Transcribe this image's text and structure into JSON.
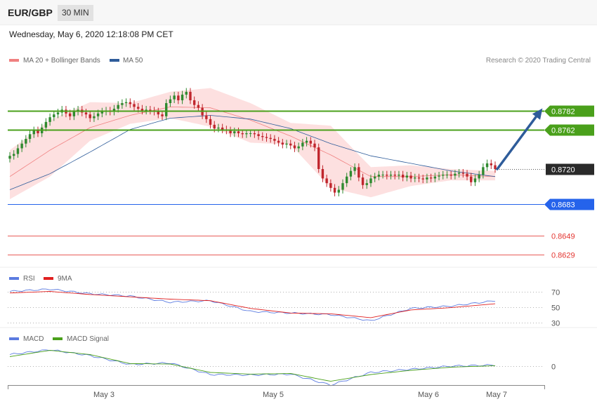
{
  "header": {
    "pair": "EUR/GBP",
    "timeframe": "30 MIN",
    "datetime": "Wednesday, May 6, 2020 12:18:08 PM CET",
    "copyright": "Research © 2020 Trading Central"
  },
  "colors": {
    "ma20": "#f08080",
    "ma50": "#2e5c9a",
    "bands_fill": "#fde0e0",
    "candle_up": "#2f8a2f",
    "candle_down": "#c0262d",
    "resistance": "#4aa01b",
    "current": "#2a2a2a",
    "pivot": "#2563eb",
    "support": "#e3342f",
    "arrow": "#2e5c9a",
    "rsi": "#5b7be0",
    "rsi_ma": "#e02020",
    "macd": "#5b7be0",
    "macd_signal": "#4aa01b"
  },
  "chart_data": [
    {
      "type": "candlestick",
      "legend": [
        {
          "label": "MA 20 + Bollinger Bands",
          "color": "#f08080"
        },
        {
          "label": "MA 50",
          "color": "#2e5c9a"
        }
      ],
      "y_range": [
        0.8615,
        0.8825
      ],
      "x_labels": [
        "May 3",
        "May 5",
        "May 6",
        "May 7"
      ],
      "levels": [
        {
          "value": 0.8782,
          "label": "0.8782",
          "kind": "resistance"
        },
        {
          "value": 0.8762,
          "label": "0.8762",
          "kind": "resistance"
        },
        {
          "value": 0.872,
          "label": "0.8720",
          "kind": "current"
        },
        {
          "value": 0.8683,
          "label": "0.8683",
          "kind": "pivot"
        },
        {
          "value": 0.8649,
          "label": "0.8649",
          "kind": "support"
        },
        {
          "value": 0.8629,
          "label": "0.8629",
          "kind": "support"
        }
      ],
      "close": [
        0.8734,
        0.8736,
        0.8742,
        0.8747,
        0.8752,
        0.8757,
        0.8761,
        0.8758,
        0.8764,
        0.877,
        0.8775,
        0.8778,
        0.878,
        0.8783,
        0.8779,
        0.8776,
        0.8781,
        0.8783,
        0.878,
        0.8778,
        0.8774,
        0.8776,
        0.8779,
        0.8781,
        0.8782,
        0.8781,
        0.8784,
        0.8788,
        0.879,
        0.8791,
        0.8789,
        0.8786,
        0.8784,
        0.8782,
        0.8783,
        0.8782,
        0.8781,
        0.8778,
        0.8776,
        0.879,
        0.8794,
        0.8798,
        0.8793,
        0.8799,
        0.8802,
        0.8793,
        0.8788,
        0.8785,
        0.8777,
        0.8773,
        0.8767,
        0.8763,
        0.8764,
        0.8762,
        0.8761,
        0.8758,
        0.876,
        0.8758,
        0.8757,
        0.8758,
        0.8758,
        0.8757,
        0.8755,
        0.8754,
        0.8753,
        0.8752,
        0.875,
        0.8748,
        0.8746,
        0.8747,
        0.8745,
        0.8742,
        0.8744,
        0.8748,
        0.875,
        0.8747,
        0.8743,
        0.872,
        0.871,
        0.8705,
        0.87,
        0.8695,
        0.8698,
        0.8705,
        0.8712,
        0.8718,
        0.8722,
        0.8711,
        0.8703,
        0.8705,
        0.871,
        0.8712,
        0.8714,
        0.8714,
        0.8713,
        0.8714,
        0.8713,
        0.8714,
        0.8711,
        0.8713,
        0.871,
        0.8711,
        0.871,
        0.8709,
        0.8711,
        0.871,
        0.8712,
        0.8713,
        0.8714,
        0.8714,
        0.8713,
        0.8715,
        0.8716,
        0.8715,
        0.8712,
        0.8706,
        0.871,
        0.8714,
        0.8722,
        0.8726,
        0.8724,
        0.872
      ],
      "ma20_x": [
        0,
        10,
        20,
        30,
        40,
        50,
        60,
        70,
        80,
        90,
        100,
        110,
        121
      ],
      "ma20": [
        0.8712,
        0.874,
        0.8764,
        0.8777,
        0.8786,
        0.8785,
        0.8772,
        0.8755,
        0.8735,
        0.8712,
        0.8712,
        0.8714,
        0.8712
      ],
      "band_upper": [
        0.874,
        0.8772,
        0.8791,
        0.879,
        0.8802,
        0.8806,
        0.879,
        0.8769,
        0.8766,
        0.8722,
        0.8724,
        0.872,
        0.8718
      ],
      "band_lower": [
        0.8688,
        0.8712,
        0.875,
        0.8768,
        0.8774,
        0.8765,
        0.8748,
        0.8746,
        0.87,
        0.869,
        0.8702,
        0.8708,
        0.8708
      ],
      "ma50_x": [
        0,
        10,
        20,
        30,
        40,
        50,
        60,
        70,
        80,
        90,
        100,
        110,
        121
      ],
      "ma50": [
        0.8698,
        0.8715,
        0.8738,
        0.8762,
        0.8774,
        0.8777,
        0.8773,
        0.8763,
        0.8747,
        0.8734,
        0.8726,
        0.8718,
        0.8712
      ],
      "forecast_arrow": {
        "from": 0.872,
        "to": 0.8782
      }
    },
    {
      "type": "line",
      "legend": [
        {
          "label": "RSI",
          "color": "#5b7be0"
        },
        {
          "label": "9MA",
          "color": "#e02020"
        }
      ],
      "y_range": [
        25,
        75
      ],
      "ticks": [
        70,
        50,
        30
      ],
      "x": [
        0,
        10,
        20,
        30,
        40,
        50,
        60,
        70,
        80,
        90,
        100,
        110,
        121
      ],
      "series": [
        {
          "name": "RSI",
          "values": [
            70,
            73,
            67,
            64,
            56,
            58,
            44,
            42,
            40,
            32,
            48,
            51,
            58
          ]
        },
        {
          "name": "9MA",
          "values": [
            68,
            70,
            66,
            63,
            60,
            58,
            48,
            42,
            41,
            36,
            46,
            49,
            54
          ]
        }
      ]
    },
    {
      "type": "line",
      "legend": [
        {
          "label": "MACD",
          "color": "#5b7be0"
        },
        {
          "label": "MACD Signal",
          "color": "#4aa01b"
        }
      ],
      "y_range": [
        -1,
        1
      ],
      "ticks": [
        0
      ],
      "x": [
        0,
        10,
        20,
        30,
        40,
        50,
        60,
        70,
        80,
        90,
        100,
        110,
        121
      ],
      "series": [
        {
          "name": "MACD",
          "values": [
            0.55,
            0.78,
            0.5,
            0.08,
            0.15,
            -0.4,
            -0.42,
            -0.38,
            -0.9,
            -0.3,
            -0.15,
            0.0,
            0.05
          ]
        },
        {
          "name": "MACD Signal",
          "values": [
            0.45,
            0.75,
            0.55,
            0.12,
            0.1,
            -0.3,
            -0.38,
            -0.35,
            -0.72,
            -0.4,
            -0.2,
            -0.05,
            0.02
          ]
        }
      ]
    }
  ]
}
